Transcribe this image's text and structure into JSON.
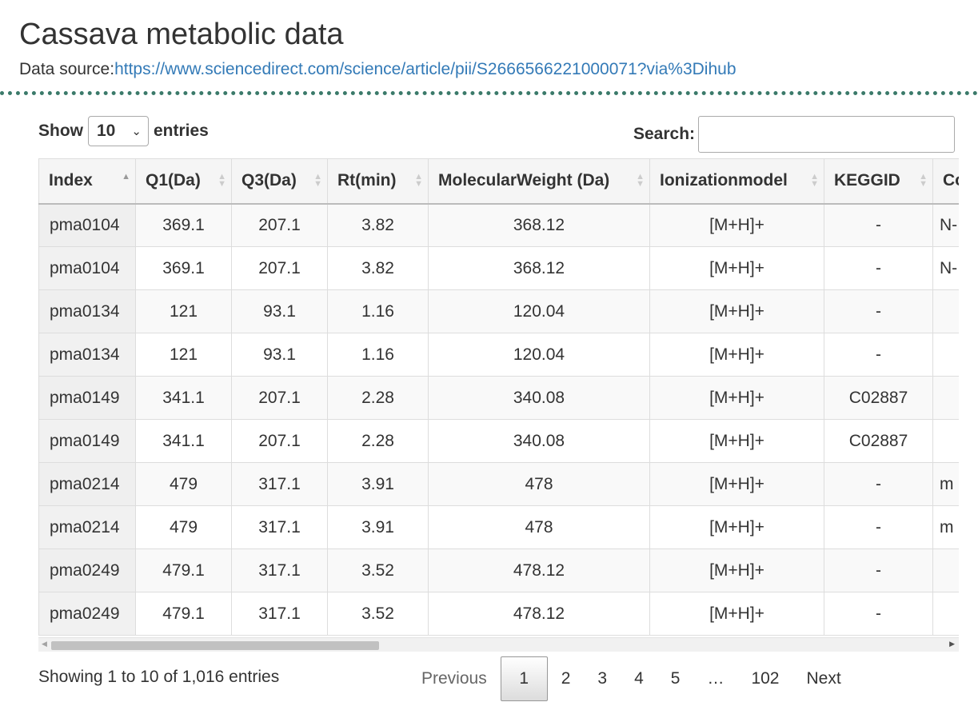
{
  "title": "Cassava metabolic data",
  "source": {
    "label": "Data source:",
    "url_text": "https://www.sciencedirect.com/science/article/pii/S2666566221000071?via%3Dihub"
  },
  "length_control": {
    "show_label": "Show",
    "value": "10",
    "entries_label": "entries"
  },
  "search": {
    "label": "Search:",
    "value": "",
    "placeholder": ""
  },
  "table": {
    "columns": [
      "Index",
      "Q1(Da)",
      "Q3(Da)",
      "Rt(min)",
      "MolecularWeight (Da)",
      "Ionizationmodel",
      "KEGGID",
      "Co"
    ],
    "sort_column": "Index",
    "sort_direction": "ascending",
    "rows": [
      [
        "pma0104",
        "369.1",
        "207.1",
        "3.82",
        "368.12",
        "[M+H]+",
        "-",
        "N-"
      ],
      [
        "pma0104",
        "369.1",
        "207.1",
        "3.82",
        "368.12",
        "[M+H]+",
        "-",
        "N-"
      ],
      [
        "pma0134",
        "121",
        "93.1",
        "1.16",
        "120.04",
        "[M+H]+",
        "-",
        ""
      ],
      [
        "pma0134",
        "121",
        "93.1",
        "1.16",
        "120.04",
        "[M+H]+",
        "-",
        ""
      ],
      [
        "pma0149",
        "341.1",
        "207.1",
        "2.28",
        "340.08",
        "[M+H]+",
        "C02887",
        ""
      ],
      [
        "pma0149",
        "341.1",
        "207.1",
        "2.28",
        "340.08",
        "[M+H]+",
        "C02887",
        ""
      ],
      [
        "pma0214",
        "479",
        "317.1",
        "3.91",
        "478",
        "[M+H]+",
        "-",
        "m"
      ],
      [
        "pma0214",
        "479",
        "317.1",
        "3.91",
        "478",
        "[M+H]+",
        "-",
        "m"
      ],
      [
        "pma0249",
        "479.1",
        "317.1",
        "3.52",
        "478.12",
        "[M+H]+",
        "-",
        ""
      ],
      [
        "pma0249",
        "479.1",
        "317.1",
        "3.52",
        "478.12",
        "[M+H]+",
        "-",
        ""
      ]
    ]
  },
  "info": "Showing 1 to 10 of 1,016 entries",
  "pagination": {
    "previous": "Previous",
    "pages": [
      "1",
      "2",
      "3",
      "4",
      "5"
    ],
    "current": "1",
    "ellipsis": "…",
    "last": "102",
    "next": "Next"
  },
  "colors": {
    "link": "#337ab7",
    "divider": "#3b7a6a",
    "header_bg": "#f5f5f5",
    "row_odd": "#f9f9f9"
  }
}
